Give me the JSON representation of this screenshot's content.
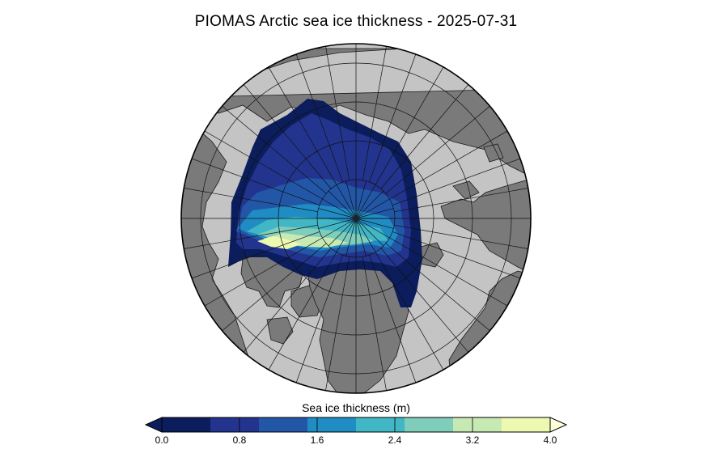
{
  "title": "PIOMAS Arctic sea ice thickness - 2025-07-31",
  "colorbar": {
    "label": "Sea ice thickness (m)",
    "min": 0.0,
    "max": 4.0,
    "ticks": [
      "0.0",
      "0.8",
      "1.6",
      "2.4",
      "3.2",
      "4.0"
    ],
    "bins": [
      {
        "from": 0.0,
        "to": 0.5,
        "color": "#0b1d5c"
      },
      {
        "from": 0.5,
        "to": 1.0,
        "color": "#23348f"
      },
      {
        "from": 1.0,
        "to": 1.5,
        "color": "#2257a8"
      },
      {
        "from": 1.5,
        "to": 2.0,
        "color": "#1f8cc4"
      },
      {
        "from": 2.0,
        "to": 2.5,
        "color": "#41b6c4"
      },
      {
        "from": 2.5,
        "to": 3.0,
        "color": "#7fcdbb"
      },
      {
        "from": 3.0,
        "to": 3.5,
        "color": "#c7e9b4"
      },
      {
        "from": 3.5,
        "to": 4.0,
        "color": "#edf8b1"
      }
    ],
    "under_color": "#0b1d5c",
    "over_color": "#ffffd9"
  },
  "map_colors": {
    "land": "#7a7a7a",
    "open_ocean": "#c4c4c4",
    "graticule": "#111111"
  }
}
